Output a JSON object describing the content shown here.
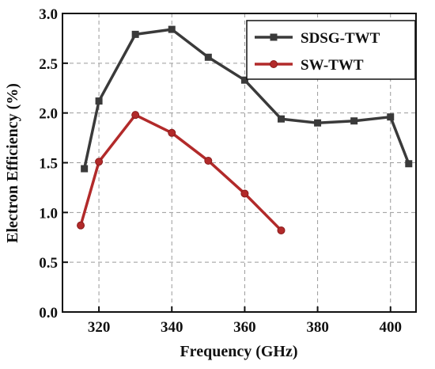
{
  "chart_data": {
    "type": "line",
    "title": "",
    "xlabel": "Frequency (GHz)",
    "ylabel": "Electron Efficiency (%)",
    "xlim": [
      310,
      407
    ],
    "ylim": [
      0.0,
      3.0
    ],
    "x_ticks": [
      320,
      340,
      360,
      380,
      400
    ],
    "x_tick_labels": [
      "320",
      "340",
      "360",
      "380",
      "400"
    ],
    "y_ticks": [
      0.0,
      0.5,
      1.0,
      1.5,
      2.0,
      2.5,
      3.0
    ],
    "y_tick_labels": [
      "0.0",
      "0.5",
      "1.0",
      "1.5",
      "2.0",
      "2.5",
      "3.0"
    ],
    "grid": true,
    "legend_position": "top-right",
    "series": [
      {
        "name": "SDSG-TWT",
        "color": "#3a3a3a",
        "marker": "square",
        "x": [
          316,
          320,
          330,
          340,
          350,
          360,
          370,
          380,
          390,
          400,
          405
        ],
        "y": [
          1.44,
          2.12,
          2.79,
          2.84,
          2.56,
          2.33,
          1.94,
          1.9,
          1.92,
          1.96,
          1.49
        ]
      },
      {
        "name": "SW-TWT",
        "color": "#b22a2a",
        "marker": "circle",
        "x": [
          315,
          320,
          330,
          340,
          350,
          360,
          370
        ],
        "y": [
          0.87,
          1.51,
          1.98,
          1.8,
          1.52,
          1.19,
          0.82
        ]
      }
    ]
  }
}
